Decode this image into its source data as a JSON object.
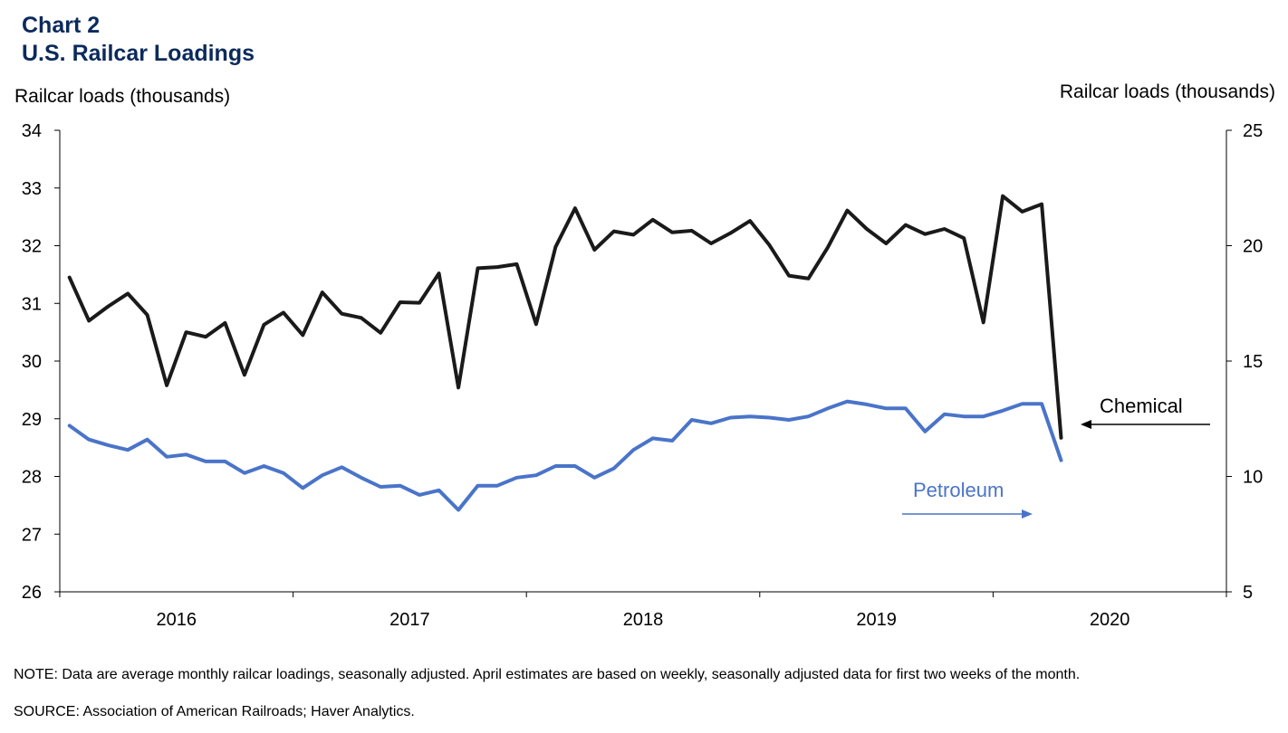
{
  "header": {
    "chart_number": "Chart 2",
    "title": "U.S. Railcar Loadings"
  },
  "footer": {
    "note": "NOTE: Data are average monthly railcar loadings, seasonally adjusted. April estimates are based on weekly, seasonally adjusted data for first two weeks of the month.",
    "source": "SOURCE: Association of American Railroads; Haver Analytics."
  },
  "chart_data": {
    "type": "line",
    "title": "U.S. Railcar Loadings",
    "x_tick_labels": [
      "2016",
      "2017",
      "2018",
      "2019",
      "2020"
    ],
    "x_start": "2016-01",
    "y_left": {
      "label": "Railcar loads (thousands)",
      "min": 26,
      "max": 34,
      "ticks": [
        26,
        27,
        28,
        29,
        30,
        31,
        32,
        33,
        34
      ]
    },
    "y_right": {
      "label": "Railcar loads (thousands)",
      "min": 5,
      "max": 25,
      "ticks": [
        5,
        10,
        15,
        20,
        25
      ]
    },
    "grid": false,
    "series": [
      {
        "name": "Chemical",
        "axis": "left",
        "color": "#1a1a1a",
        "values": [
          31.45,
          30.7,
          30.95,
          31.17,
          30.8,
          29.58,
          30.5,
          30.42,
          30.66,
          29.76,
          30.63,
          30.84,
          30.45,
          31.19,
          30.82,
          30.75,
          30.49,
          31.02,
          31.01,
          31.52,
          29.54,
          31.61,
          31.63,
          31.68,
          30.64,
          31.98,
          32.65,
          31.93,
          32.25,
          32.19,
          32.45,
          32.23,
          32.26,
          32.04,
          32.22,
          32.43,
          32.01,
          31.48,
          31.43,
          31.97,
          32.61,
          32.29,
          32.04,
          32.36,
          32.2,
          32.29,
          32.13,
          30.67,
          32.86,
          32.59,
          32.72,
          28.67
        ]
      },
      {
        "name": "Petroleum",
        "axis": "right",
        "color": "#4a74c9",
        "values": [
          12.2,
          11.6,
          11.35,
          11.15,
          11.6,
          10.85,
          10.95,
          10.65,
          10.65,
          10.15,
          10.45,
          10.15,
          9.5,
          10.05,
          10.4,
          9.95,
          9.55,
          9.6,
          9.2,
          9.4,
          8.55,
          9.6,
          9.6,
          9.95,
          10.05,
          10.45,
          10.45,
          9.95,
          10.35,
          11.15,
          11.65,
          11.55,
          12.45,
          12.3,
          12.55,
          12.6,
          12.55,
          12.45,
          12.6,
          12.95,
          13.25,
          13.12,
          12.95,
          12.95,
          11.95,
          12.7,
          12.6,
          12.6,
          12.85,
          13.15,
          13.15,
          10.7
        ]
      }
    ],
    "annotations": [
      {
        "label": "Chemical",
        "color": "#000000",
        "arrow": "left"
      },
      {
        "label": "Petroleum",
        "color": "#4a74c9",
        "arrow": "right"
      }
    ]
  }
}
